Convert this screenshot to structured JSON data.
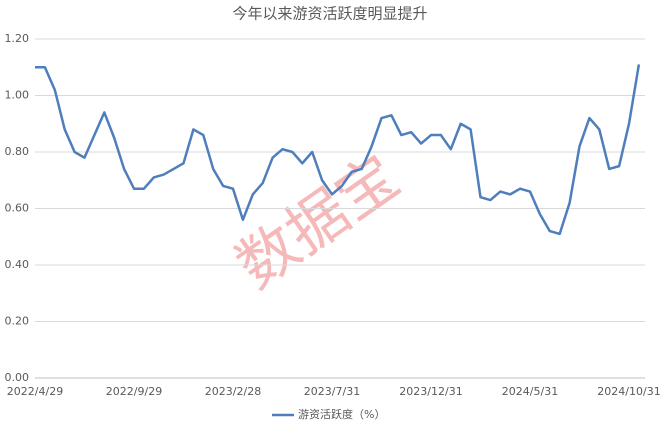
{
  "chart_data": {
    "type": "line",
    "title": "今年以来游资活跃度明显提升",
    "watermark": "数据宝",
    "categories": [
      "2022/4/29",
      null,
      null,
      null,
      null,
      null,
      null,
      null,
      null,
      null,
      "2022/9/29",
      null,
      null,
      null,
      null,
      null,
      null,
      null,
      null,
      null,
      "2023/2/28",
      null,
      null,
      null,
      null,
      null,
      null,
      null,
      null,
      null,
      "2023/7/31",
      null,
      null,
      null,
      null,
      null,
      null,
      null,
      null,
      null,
      "2023/12/31",
      null,
      null,
      null,
      null,
      null,
      null,
      null,
      null,
      null,
      "2024/5/31",
      null,
      null,
      null,
      null,
      null,
      null,
      null,
      null,
      null,
      "2024/10/31",
      null
    ],
    "series": [
      {
        "name": "游资活跃度（%）",
        "color": "#4e7ebb",
        "values": [
          1.1,
          1.1,
          1.02,
          0.88,
          0.8,
          0.78,
          0.86,
          0.94,
          0.85,
          0.74,
          0.67,
          0.67,
          0.71,
          0.72,
          0.74,
          0.76,
          0.88,
          0.86,
          0.74,
          0.68,
          0.67,
          0.56,
          0.65,
          0.69,
          0.78,
          0.81,
          0.8,
          0.76,
          0.8,
          0.7,
          0.65,
          0.68,
          0.73,
          0.74,
          0.82,
          0.92,
          0.93,
          0.86,
          0.87,
          0.83,
          0.86,
          0.86,
          0.81,
          0.9,
          0.88,
          0.64,
          0.63,
          0.66,
          0.65,
          0.67,
          0.66,
          0.58,
          0.52,
          0.51,
          0.62,
          0.82,
          0.92,
          0.88,
          0.74,
          0.75,
          0.9,
          1.11
        ]
      }
    ],
    "ylim": [
      0,
      1.2
    ],
    "yticks": [
      {
        "value": 0,
        "label": "0.00"
      },
      {
        "value": 0.2,
        "label": "0.20"
      },
      {
        "value": 0.4,
        "label": "0.40"
      },
      {
        "value": 0.6,
        "label": "0.60"
      },
      {
        "value": 0.8,
        "label": "0.80"
      },
      {
        "value": 1.0,
        "label": "1.00"
      },
      {
        "value": 1.2,
        "label": "1.20"
      }
    ],
    "grid": true
  }
}
